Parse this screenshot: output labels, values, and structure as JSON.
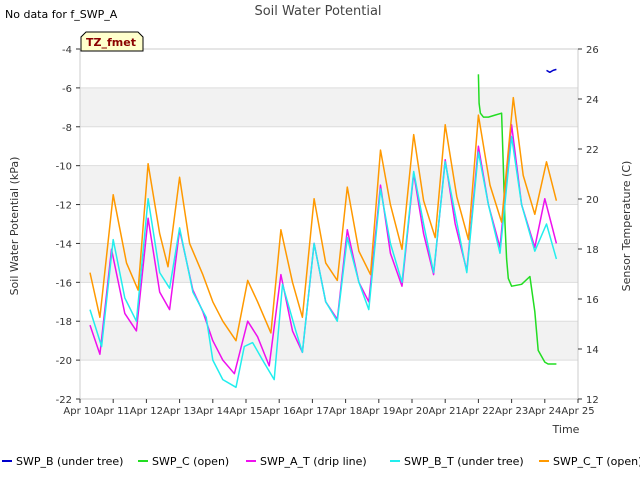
{
  "corner_note": "No data for f_SWP_A",
  "chart_data": {
    "type": "line",
    "title": "Soil Water Potential",
    "badge": "TZ_fmet",
    "xlabel": "Time",
    "ylabel": "Soil Water Potential (kPa)",
    "y2label": "Sensor Temperature (C)",
    "x_ticks": [
      "Apr 10",
      "Apr 11",
      "Apr 12",
      "Apr 13",
      "Apr 14",
      "Apr 15",
      "Apr 16",
      "Apr 17",
      "Apr 18",
      "Apr 19",
      "Apr 20",
      "Apr 21",
      "Apr 22",
      "Apr 23",
      "Apr 24",
      "Apr 25"
    ],
    "xlim": [
      0,
      15
    ],
    "ylim": [
      -22,
      -4
    ],
    "y_ticks": [
      -22,
      -20,
      -18,
      -16,
      -14,
      -12,
      -10,
      -8,
      -6,
      -4
    ],
    "y2lim": [
      12,
      26
    ],
    "y2_ticks": [
      12,
      14,
      16,
      18,
      20,
      22,
      24,
      26
    ],
    "grid": true,
    "legend_position": "bottom",
    "series": [
      {
        "name": "SWP_B (under tree)",
        "color": "#0000cc",
        "x": [
          14.05,
          14.15,
          14.25,
          14.35
        ],
        "y": [
          -5.1,
          -5.2,
          -5.1,
          -5.05
        ]
      },
      {
        "name": "SWP_C (open)",
        "color": "#22dd22",
        "x": [
          12.0,
          12.02,
          12.06,
          12.15,
          12.3,
          12.5,
          12.7,
          12.75,
          12.8,
          12.85,
          12.9,
          13.0,
          13.3,
          13.55,
          13.7,
          13.8,
          14.0,
          14.1,
          14.2,
          14.35
        ],
        "y": [
          -5.3,
          -6.8,
          -7.3,
          -7.5,
          -7.5,
          -7.4,
          -7.3,
          -10.0,
          -13.0,
          -14.8,
          -15.8,
          -16.2,
          -16.1,
          -15.7,
          -17.5,
          -19.5,
          -20.1,
          -20.2,
          -20.2,
          -20.2
        ]
      },
      {
        "name": "SWP_A_T (drip line)",
        "color": "#ee11ee",
        "x": [
          0.3,
          0.6,
          0.95,
          1.35,
          1.7,
          2.05,
          2.4,
          2.7,
          3.0,
          3.4,
          3.7,
          4.0,
          4.3,
          4.65,
          5.05,
          5.35,
          5.7,
          6.05,
          6.4,
          6.7,
          7.05,
          7.4,
          7.75,
          8.05,
          8.4,
          8.7,
          9.05,
          9.35,
          9.7,
          10.05,
          10.35,
          10.65,
          11.0,
          11.3,
          11.65,
          12.0,
          12.3,
          12.65,
          13.0,
          13.3,
          13.7,
          14.0,
          14.2,
          14.35
        ],
        "y": [
          -18.2,
          -19.7,
          -14.3,
          -17.6,
          -18.5,
          -12.7,
          -16.5,
          -17.4,
          -13.3,
          -16.4,
          -17.5,
          -19.0,
          -20.0,
          -20.7,
          -18.0,
          -18.8,
          -20.3,
          -15.6,
          -18.5,
          -19.6,
          -14.0,
          -17.0,
          -17.9,
          -13.3,
          -16.0,
          -17.0,
          -11.0,
          -14.5,
          -16.2,
          -10.4,
          -13.5,
          -15.6,
          -9.7,
          -13.0,
          -15.4,
          -9.0,
          -12.0,
          -14.2,
          -7.9,
          -12.0,
          -14.2,
          -11.7,
          -13.0,
          -14.0
        ]
      },
      {
        "name": "SWP_B_T (under tree)",
        "color": "#22eeee",
        "x": [
          0.3,
          0.65,
          1.0,
          1.35,
          1.7,
          2.05,
          2.4,
          2.7,
          3.0,
          3.4,
          3.8,
          4.0,
          4.3,
          4.7,
          4.95,
          5.2,
          5.5,
          5.85,
          6.1,
          6.5,
          6.7,
          7.05,
          7.4,
          7.75,
          8.05,
          8.4,
          8.7,
          9.05,
          9.35,
          9.7,
          10.05,
          10.35,
          10.65,
          11.0,
          11.3,
          11.65,
          12.0,
          12.3,
          12.65,
          13.0,
          13.3,
          13.7,
          14.05,
          14.35
        ],
        "y": [
          -17.4,
          -19.3,
          -13.8,
          -16.8,
          -18.0,
          -11.7,
          -15.5,
          -16.3,
          -13.2,
          -16.5,
          -17.8,
          -20.0,
          -21.0,
          -21.4,
          -19.3,
          -19.1,
          -20.0,
          -21.0,
          -16.1,
          -18.5,
          -19.6,
          -14.0,
          -17.0,
          -18.0,
          -13.7,
          -16.0,
          -17.4,
          -11.2,
          -14.0,
          -16.0,
          -10.3,
          -13.0,
          -15.5,
          -9.8,
          -12.5,
          -15.5,
          -9.3,
          -12.0,
          -14.5,
          -8.5,
          -12.0,
          -14.4,
          -13.0,
          -14.8
        ]
      },
      {
        "name": "SWP_C_T (open)",
        "color": "#ff9900",
        "x": [
          0.3,
          0.6,
          1.0,
          1.4,
          1.75,
          2.05,
          2.4,
          2.65,
          3.0,
          3.3,
          3.7,
          4.0,
          4.3,
          4.7,
          5.05,
          5.35,
          5.75,
          6.05,
          6.4,
          6.7,
          7.05,
          7.4,
          7.75,
          8.05,
          8.4,
          8.75,
          9.05,
          9.35,
          9.7,
          10.05,
          10.35,
          10.7,
          11.0,
          11.35,
          11.7,
          12.0,
          12.35,
          12.7,
          13.05,
          13.35,
          13.7,
          14.05,
          14.35
        ],
        "y": [
          -15.5,
          -17.8,
          -11.5,
          -15.0,
          -16.4,
          -9.9,
          -13.5,
          -15.2,
          -10.6,
          -14.0,
          -15.6,
          -17.0,
          -18.0,
          -19.0,
          -15.9,
          -17.0,
          -18.6,
          -13.3,
          -16.0,
          -17.8,
          -11.7,
          -15.0,
          -15.9,
          -11.1,
          -14.4,
          -15.6,
          -9.2,
          -12.0,
          -14.3,
          -8.4,
          -11.8,
          -13.7,
          -7.9,
          -11.6,
          -13.8,
          -7.4,
          -11.0,
          -12.9,
          -6.5,
          -10.5,
          -12.5,
          -9.8,
          -11.8
        ]
      }
    ]
  }
}
